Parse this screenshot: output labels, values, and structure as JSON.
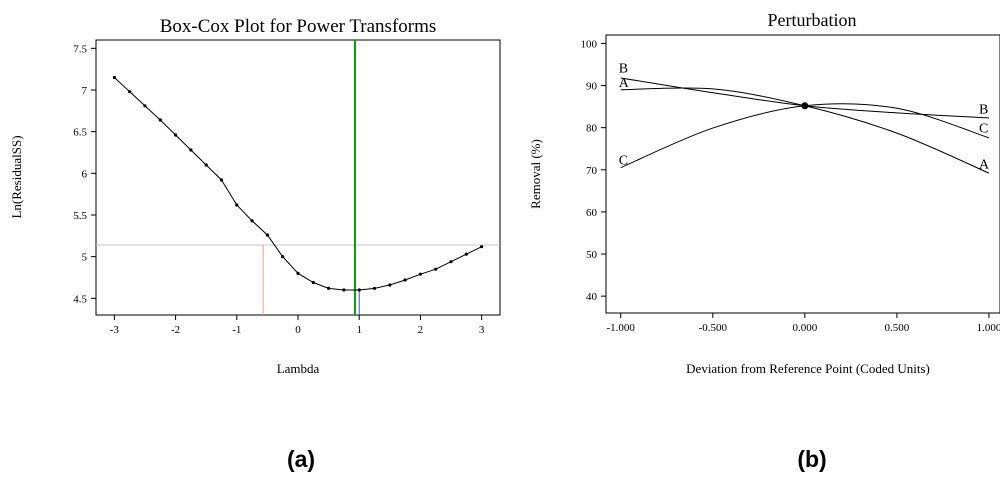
{
  "panels": [
    {
      "label": "(a)"
    },
    {
      "label": "(b)"
    }
  ],
  "chart_data": [
    {
      "type": "line",
      "title": "Box-Cox Plot for Power Transforms",
      "xlabel": "Lambda",
      "ylabel": "Ln(ResidualSS)",
      "xlim": [
        -3.3,
        3.3
      ],
      "ylim": [
        4.3,
        7.6
      ],
      "xticks": [
        -3,
        -2,
        -1,
        0,
        1,
        2,
        3
      ],
      "xtick_labels": [
        "-3",
        "-2",
        "-1",
        "0",
        "1",
        "2",
        "3"
      ],
      "yticks": [
        4.5,
        5,
        5.5,
        6,
        6.5,
        7,
        7.5
      ],
      "ytick_labels": [
        "4.5",
        "5",
        "5.5",
        "6",
        "6.5",
        "7",
        "7.5"
      ],
      "grid": false,
      "series": [
        {
          "x": [
            -3,
            -2.75,
            -2.5,
            -2.25,
            -2,
            -1.75,
            -1.5,
            -1.25,
            -1,
            -0.75,
            -0.5,
            -0.25,
            0,
            0.25,
            0.5,
            0.75,
            1,
            1.25,
            1.5,
            1.75,
            2,
            2.25,
            2.5,
            2.75,
            3
          ],
          "y": [
            7.15,
            6.98,
            6.81,
            6.64,
            6.46,
            6.28,
            6.1,
            5.92,
            5.62,
            5.43,
            5.26,
            5.0,
            4.8,
            4.69,
            4.62,
            4.6,
            4.6,
            4.62,
            4.66,
            4.72,
            4.79,
            4.85,
            4.94,
            5.03,
            5.12
          ],
          "color": "#000000"
        }
      ],
      "reference_lines": {
        "horizontal_y": 5.14,
        "lower_ci_lambda": -0.57,
        "best_lambda": 0.93,
        "current_lambda": 1.0,
        "colors": {
          "ci": "#e8a0a0",
          "best": "#00a000",
          "current": "#3a4ccc",
          "horizontal": "#c8c8c8"
        }
      }
    },
    {
      "type": "line",
      "title": "Perturbation",
      "xlabel": "Deviation from Reference Point (Coded Units)",
      "ylabel": "Removal (%)",
      "xlim": [
        -1.08,
        1.06
      ],
      "ylim": [
        36,
        102
      ],
      "xticks": [
        -1,
        -0.5,
        0,
        0.5,
        1
      ],
      "xtick_labels": [
        "-1.000",
        "-0.500",
        "0.000",
        "0.500",
        "1.000"
      ],
      "yticks": [
        40,
        50,
        60,
        70,
        80,
        90,
        100
      ],
      "ytick_labels": [
        "40",
        "50",
        "60",
        "70",
        "80",
        "90",
        "100"
      ],
      "grid": false,
      "reference_point": {
        "x": 0,
        "y": 85.2
      },
      "series": [
        {
          "name": "A",
          "x": [
            -1,
            -0.5,
            0,
            0.5,
            1
          ],
          "y": [
            89.0,
            89.2,
            85.2,
            78.7,
            69.2
          ],
          "label_left_y": 90.8,
          "label_right_y": 71.5,
          "color": "#000000"
        },
        {
          "name": "B",
          "x": [
            -1,
            -0.5,
            0,
            0.5,
            1
          ],
          "y": [
            91.8,
            88.3,
            85.2,
            83.5,
            82.3
          ],
          "label_left_y": 94.3,
          "label_right_y": 84.5,
          "color": "#000000"
        },
        {
          "name": "C",
          "x": [
            -1,
            -0.5,
            0,
            0.5,
            1
          ],
          "y": [
            70.5,
            79.9,
            85.2,
            84.6,
            77.6
          ],
          "label_left_y": 72.5,
          "label_right_y": 80.0,
          "color": "#000000"
        }
      ]
    }
  ]
}
